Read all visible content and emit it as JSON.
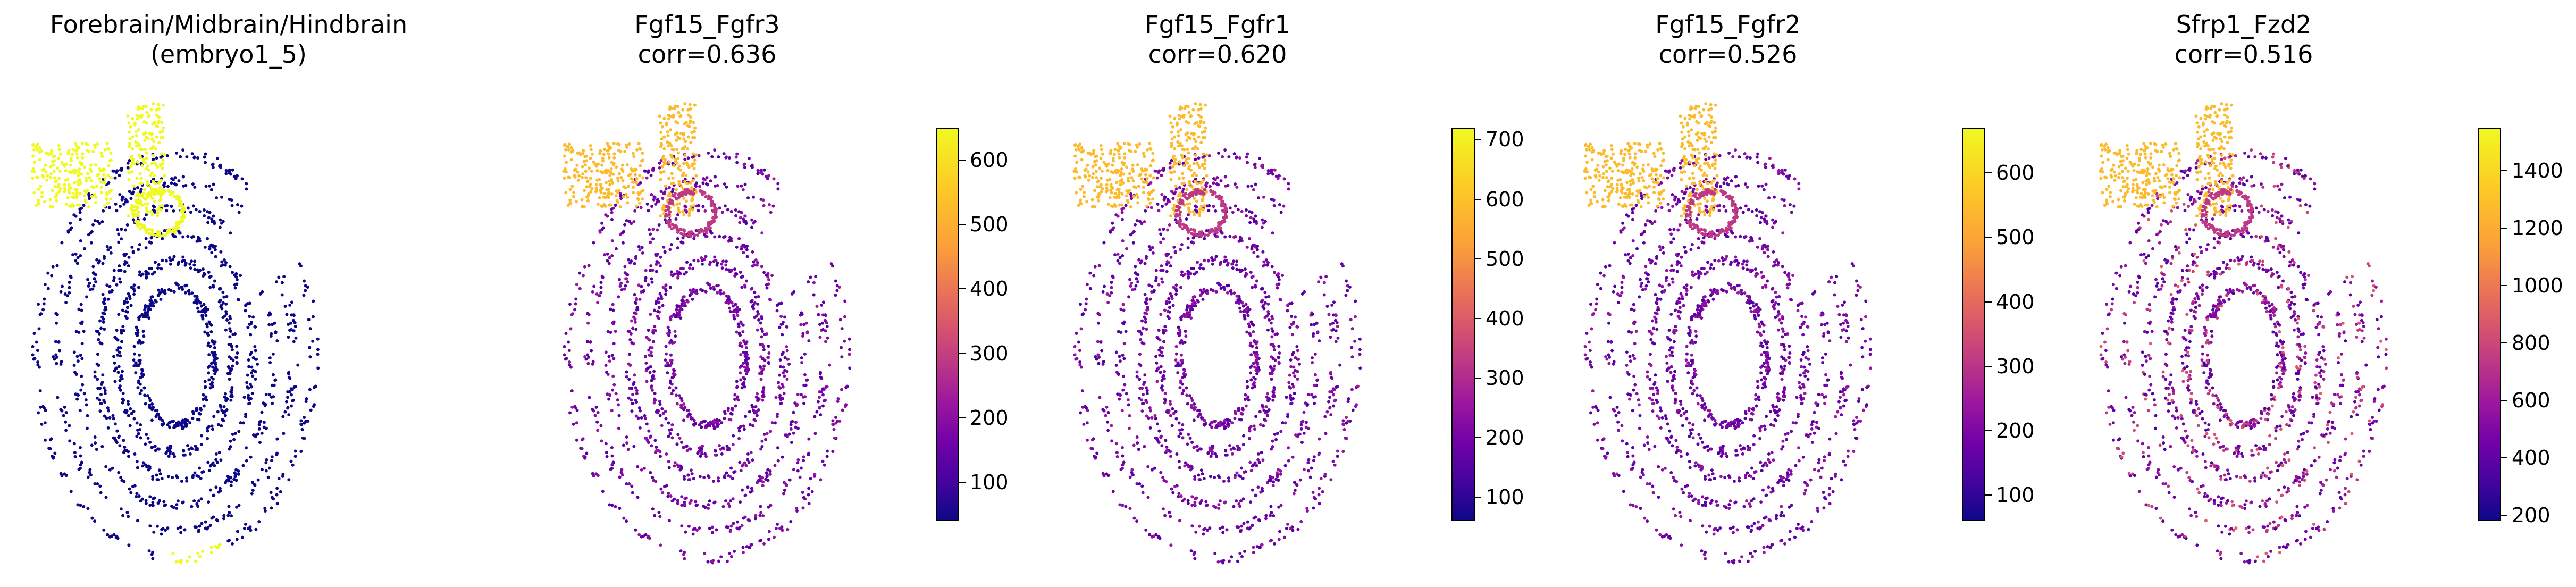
{
  "figure": {
    "panels": [
      {
        "id": "region",
        "title": "Forebrain/Midbrain/Hindbrain\n(embryo1_5)",
        "colorbar": null
      },
      {
        "id": "fgf15_fgfr3",
        "title": "Fgf15_Fgfr3\ncorr=0.636",
        "colorbar": {
          "min": 40,
          "max": 650,
          "ticks": [
            100,
            200,
            300,
            400,
            500,
            600
          ]
        }
      },
      {
        "id": "fgf15_fgfr1",
        "title": "Fgf15_Fgfr1\ncorr=0.620",
        "colorbar": {
          "min": 60,
          "max": 720,
          "ticks": [
            100,
            200,
            300,
            400,
            500,
            600,
            700
          ]
        }
      },
      {
        "id": "fgf15_fgfr2",
        "title": "Fgf15_Fgfr2\ncorr=0.526",
        "colorbar": {
          "min": 60,
          "max": 670,
          "ticks": [
            100,
            200,
            300,
            400,
            500,
            600
          ]
        }
      },
      {
        "id": "sfrp1_fzd2",
        "title": "Sfrp1_Fzd2\ncorr=0.516",
        "colorbar": {
          "min": 180,
          "max": 1550,
          "ticks": [
            200,
            400,
            600,
            800,
            1000,
            1200,
            1400
          ]
        }
      }
    ]
  },
  "chart_data": [
    {
      "type": "scatter",
      "title": "Forebrain/Midbrain/Hindbrain\n(embryo1_5)",
      "description_colors": {
        "highlight": "#f0f921",
        "background": "#0d0887"
      },
      "grid": false,
      "axes": "off"
    },
    {
      "type": "scatter",
      "title": "Fgf15_Fgfr3\ncorr=0.636",
      "colormap": "plasma",
      "color_range": [
        40,
        650
      ],
      "colorbar_ticks": [
        100,
        200,
        300,
        400,
        500,
        600
      ],
      "grid": false,
      "axes": "off"
    },
    {
      "type": "scatter",
      "title": "Fgf15_Fgfr1\ncorr=0.620",
      "colormap": "plasma",
      "color_range": [
        60,
        720
      ],
      "colorbar_ticks": [
        100,
        200,
        300,
        400,
        500,
        600,
        700
      ],
      "grid": false,
      "axes": "off"
    },
    {
      "type": "scatter",
      "title": "Fgf15_Fgfr2\ncorr=0.526",
      "colormap": "plasma",
      "color_range": [
        60,
        670
      ],
      "colorbar_ticks": [
        100,
        200,
        300,
        400,
        500,
        600
      ],
      "grid": false,
      "axes": "off"
    },
    {
      "type": "scatter",
      "title": "Sfrp1_Fzd2\ncorr=0.516",
      "colormap": "plasma",
      "color_range": [
        180,
        1550
      ],
      "colorbar_ticks": [
        200,
        400,
        600,
        800,
        1000,
        1200,
        1400
      ],
      "grid": false,
      "axes": "off"
    }
  ]
}
